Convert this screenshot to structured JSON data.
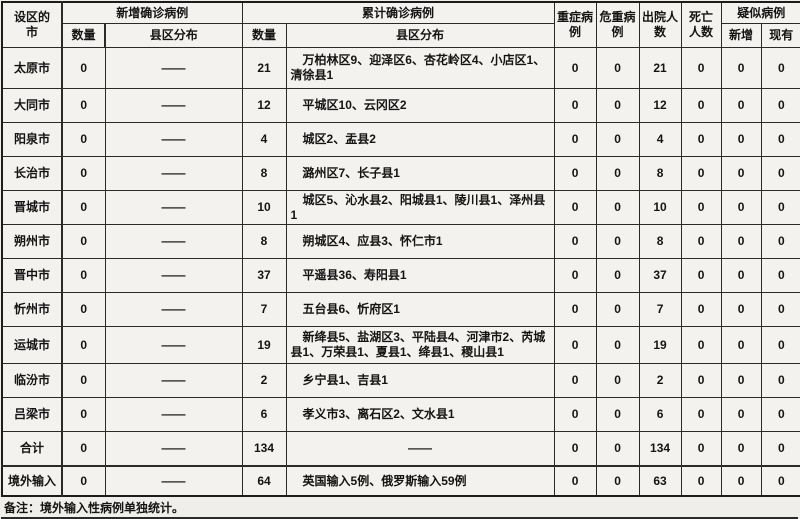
{
  "table": {
    "headers": {
      "city": "设区的市",
      "new_group": "新增确诊病例",
      "cum_group": "累计确诊病例",
      "count_new": "数量",
      "district_new": "县区分布",
      "count_cum": "数量",
      "district_cum": "县区分布",
      "severe": "重症病例",
      "critical": "危重病例",
      "discharged": "出院人数",
      "deaths": "死亡人数",
      "suspected_group": "疑似病例",
      "suspected_new": "新增",
      "suspected_existing": "现有"
    },
    "dash": "——",
    "rows": [
      {
        "city": "太原市",
        "new_count": "0",
        "new_district": "——",
        "cum_count": "21",
        "cum_district": "万柏林区9、迎泽区6、杏花岭区4、小店区1、清徐县1",
        "severe": "0",
        "critical": "0",
        "discharged": "21",
        "deaths": "0",
        "suspected_new": "0",
        "suspected_existing": "0"
      },
      {
        "city": "大同市",
        "new_count": "0",
        "new_district": "——",
        "cum_count": "12",
        "cum_district": "平城区10、云冈区2",
        "severe": "0",
        "critical": "0",
        "discharged": "12",
        "deaths": "0",
        "suspected_new": "0",
        "suspected_existing": "0"
      },
      {
        "city": "阳泉市",
        "new_count": "0",
        "new_district": "——",
        "cum_count": "4",
        "cum_district": "城区2、盂县2",
        "severe": "0",
        "critical": "0",
        "discharged": "4",
        "deaths": "0",
        "suspected_new": "0",
        "suspected_existing": "0"
      },
      {
        "city": "长治市",
        "new_count": "0",
        "new_district": "——",
        "cum_count": "8",
        "cum_district": "潞州区7、长子县1",
        "severe": "0",
        "critical": "0",
        "discharged": "8",
        "deaths": "0",
        "suspected_new": "0",
        "suspected_existing": "0"
      },
      {
        "city": "晋城市",
        "new_count": "0",
        "new_district": "——",
        "cum_count": "10",
        "cum_district": "城区5、沁水县2、阳城县1、陵川县1、泽州县1",
        "severe": "0",
        "critical": "0",
        "discharged": "10",
        "deaths": "0",
        "suspected_new": "0",
        "suspected_existing": "0"
      },
      {
        "city": "朔州市",
        "new_count": "0",
        "new_district": "——",
        "cum_count": "8",
        "cum_district": "朔城区4、应县3、怀仁市1",
        "severe": "0",
        "critical": "0",
        "discharged": "8",
        "deaths": "0",
        "suspected_new": "0",
        "suspected_existing": "0"
      },
      {
        "city": "晋中市",
        "new_count": "0",
        "new_district": "——",
        "cum_count": "37",
        "cum_district": "平遥县36、寿阳县1",
        "severe": "0",
        "critical": "0",
        "discharged": "37",
        "deaths": "0",
        "suspected_new": "0",
        "suspected_existing": "0"
      },
      {
        "city": "忻州市",
        "new_count": "0",
        "new_district": "——",
        "cum_count": "7",
        "cum_district": "五台县6、忻府区1",
        "severe": "0",
        "critical": "0",
        "discharged": "7",
        "deaths": "0",
        "suspected_new": "0",
        "suspected_existing": "0"
      },
      {
        "city": "运城市",
        "new_count": "0",
        "new_district": "——",
        "cum_count": "19",
        "cum_district": "新绛县5、盐湖区3、平陆县4、河津市2、芮城县1、万荣县1、夏县1、绛县1、稷山县1",
        "severe": "0",
        "critical": "0",
        "discharged": "19",
        "deaths": "0",
        "suspected_new": "0",
        "suspected_existing": "0"
      },
      {
        "city": "临汾市",
        "new_count": "0",
        "new_district": "——",
        "cum_count": "2",
        "cum_district": "乡宁县1、吉县1",
        "severe": "0",
        "critical": "0",
        "discharged": "2",
        "deaths": "0",
        "suspected_new": "0",
        "suspected_existing": "0"
      },
      {
        "city": "吕梁市",
        "new_count": "0",
        "new_district": "——",
        "cum_count": "6",
        "cum_district": "孝义市3、离石区2、文水县1",
        "severe": "0",
        "critical": "0",
        "discharged": "6",
        "deaths": "0",
        "suspected_new": "0",
        "suspected_existing": "0"
      },
      {
        "city": "合计",
        "new_count": "0",
        "new_district": "——",
        "cum_count": "134",
        "cum_district": "——",
        "severe": "0",
        "critical": "0",
        "discharged": "134",
        "deaths": "0",
        "suspected_new": "0",
        "suspected_existing": "0"
      },
      {
        "city": "境外输入",
        "new_count": "0",
        "new_district": "——",
        "cum_count": "64",
        "cum_district": "英国输入5例、俄罗斯输入59例",
        "severe": "0",
        "critical": "0",
        "discharged": "63",
        "deaths": "0",
        "suspected_new": "0",
        "suspected_existing": "0"
      }
    ],
    "note": "备注：境外输入性病例单独统计。"
  }
}
